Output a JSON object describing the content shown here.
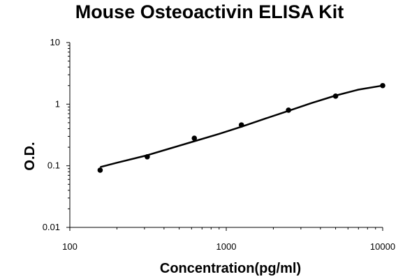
{
  "chart_data": {
    "type": "scatter",
    "title": "Mouse Osteoactivin ELISA Kit",
    "xlabel": "Concentration(pg/ml)",
    "ylabel": "O.D.",
    "x_scale": "log",
    "y_scale": "log",
    "xlim": [
      100,
      10000
    ],
    "ylim": [
      0.01,
      10
    ],
    "x_ticks": [
      "100",
      "1000",
      "10000"
    ],
    "y_ticks": [
      "10",
      "1",
      "0.1",
      "0.01"
    ],
    "grid": false,
    "series": [
      {
        "x": [
          156.25,
          312.5,
          625,
          1250,
          2500,
          5000,
          10000
        ],
        "y": [
          0.085,
          0.14,
          0.28,
          0.46,
          0.8,
          1.35,
          2.0
        ]
      }
    ],
    "trendline": {
      "x": [
        156.25,
        200,
        312.5,
        450,
        625,
        900,
        1250,
        1800,
        2500,
        3500,
        5000,
        7000,
        10000
      ],
      "y": [
        0.095,
        0.112,
        0.148,
        0.195,
        0.25,
        0.33,
        0.43,
        0.59,
        0.78,
        1.04,
        1.38,
        1.72,
        2.0
      ]
    },
    "colors": {
      "markers": "#000000",
      "line": "#000000",
      "axes": "#000000"
    }
  }
}
